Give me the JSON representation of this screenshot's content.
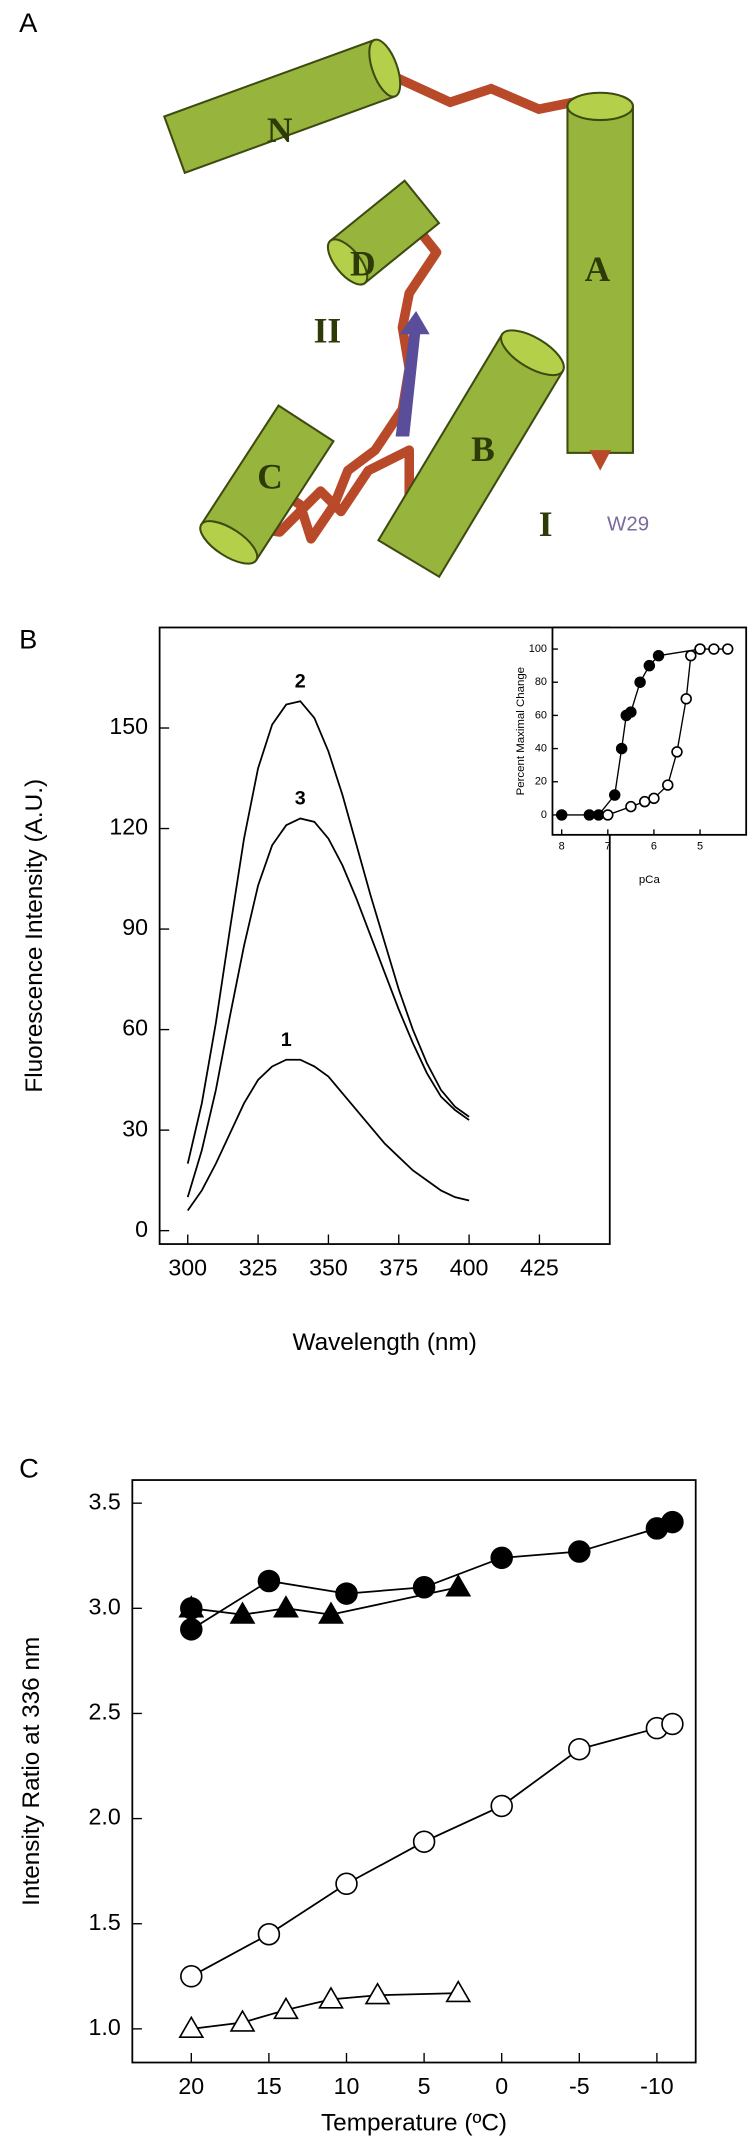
{
  "panel_labels": [
    "A",
    "B",
    "C"
  ],
  "diagram": {
    "labels": [
      "N",
      "A",
      "D",
      "II",
      "B",
      "C",
      "I",
      "W29"
    ]
  },
  "chart_data": [
    {
      "type": "line",
      "xlabel": "Wavelength (nm)",
      "ylabel": "Fluorescence Intensity (A.U.)",
      "xlim": [
        290,
        450
      ],
      "ylim": [
        -4,
        180
      ],
      "xticks": [
        300,
        325,
        350,
        375,
        400,
        425
      ],
      "yticks": [
        0,
        30,
        60,
        90,
        120,
        150
      ],
      "x": [
        300,
        305,
        310,
        315,
        320,
        325,
        330,
        335,
        340,
        345,
        350,
        355,
        360,
        365,
        370,
        375,
        380,
        385,
        390,
        395,
        400
      ],
      "series": [
        {
          "name": "1",
          "color": "#000000",
          "values": [
            6,
            12,
            20,
            29,
            38,
            45,
            49,
            51,
            51,
            49,
            46,
            41,
            36,
            31,
            26,
            22,
            18,
            15,
            12,
            10,
            9
          ]
        },
        {
          "name": "2",
          "color": "#000000",
          "values": [
            20,
            38,
            62,
            90,
            117,
            138,
            151,
            157,
            158,
            153,
            143,
            130,
            115,
            100,
            86,
            72,
            60,
            50,
            42,
            37,
            34
          ]
        },
        {
          "name": "3",
          "color": "#000000",
          "values": [
            10,
            24,
            42,
            64,
            85,
            103,
            115,
            121,
            123,
            122,
            117,
            109,
            99,
            88,
            77,
            66,
            56,
            47,
            40,
            36,
            33
          ]
        }
      ]
    },
    {
      "type": "line",
      "xlabel": "pCa",
      "ylabel": "Percent Maximal Change",
      "xlim": [
        8.2,
        4.0
      ],
      "ylim": [
        -12,
        113
      ],
      "xticks": [
        8,
        7,
        6,
        5
      ],
      "yticks": [
        0,
        20,
        40,
        60,
        80,
        100
      ],
      "series": [
        {
          "color": "#000000",
          "marker": "circle",
          "filled": true,
          "x": [
            8,
            7.4,
            7.2,
            6.85,
            6.7,
            6.6,
            6.5,
            6.3,
            6.1,
            5.9,
            5.0
          ],
          "values": [
            0,
            0,
            0,
            12,
            40,
            60,
            62,
            80,
            90,
            96,
            100
          ]
        },
        {
          "color": "#000000",
          "marker": "circle",
          "filled": false,
          "x": [
            7.0,
            6.5,
            6.2,
            6.0,
            5.7,
            5.5,
            5.3,
            5.2,
            5.0,
            4.7,
            4.4
          ],
          "values": [
            0,
            5,
            8,
            10,
            18,
            38,
            70,
            96,
            100,
            100,
            100
          ]
        }
      ]
    },
    {
      "type": "line",
      "xlabel": "Temperature (ºC)",
      "ylabel": "Intensity Ratio at 336 nm",
      "xlim": [
        23.8,
        -12.5
      ],
      "ylim": [
        0.84,
        3.61
      ],
      "xticks": [
        20,
        15,
        10,
        5,
        0,
        -5,
        -10
      ],
      "yticks": [
        {
          "value": 1,
          "label": "1.0"
        },
        1.5,
        {
          "value": 2,
          "label": "2.0"
        },
        2.5,
        {
          "value": 3,
          "label": "3.0"
        },
        3.5
      ],
      "series": [
        {
          "color": "#000000",
          "marker": "circle",
          "filled": true,
          "x": [
            20,
            20,
            15,
            10,
            5,
            0,
            -5,
            -10,
            -11
          ],
          "values": [
            3.0,
            2.9,
            3.13,
            3.07,
            3.1,
            3.24,
            3.27,
            3.38,
            3.41
          ]
        },
        {
          "color": "#000000",
          "marker": "triangle",
          "filled": true,
          "x": [
            20,
            16.7,
            13.9,
            11,
            2.8
          ],
          "values": [
            3.0,
            2.97,
            3.0,
            2.97,
            3.1
          ]
        },
        {
          "color": "#000000",
          "marker": "circle",
          "filled": false,
          "x": [
            20,
            15,
            10,
            5,
            0,
            -5,
            -10,
            -11
          ],
          "values": [
            1.25,
            1.45,
            1.69,
            1.89,
            2.06,
            2.33,
            2.43,
            2.45
          ]
        },
        {
          "color": "#000000",
          "marker": "triangle",
          "filled": false,
          "x": [
            20,
            16.7,
            13.9,
            11,
            8,
            2.8
          ],
          "values": [
            1.0,
            1.03,
            1.09,
            1.14,
            1.16,
            1.17
          ]
        }
      ]
    }
  ]
}
